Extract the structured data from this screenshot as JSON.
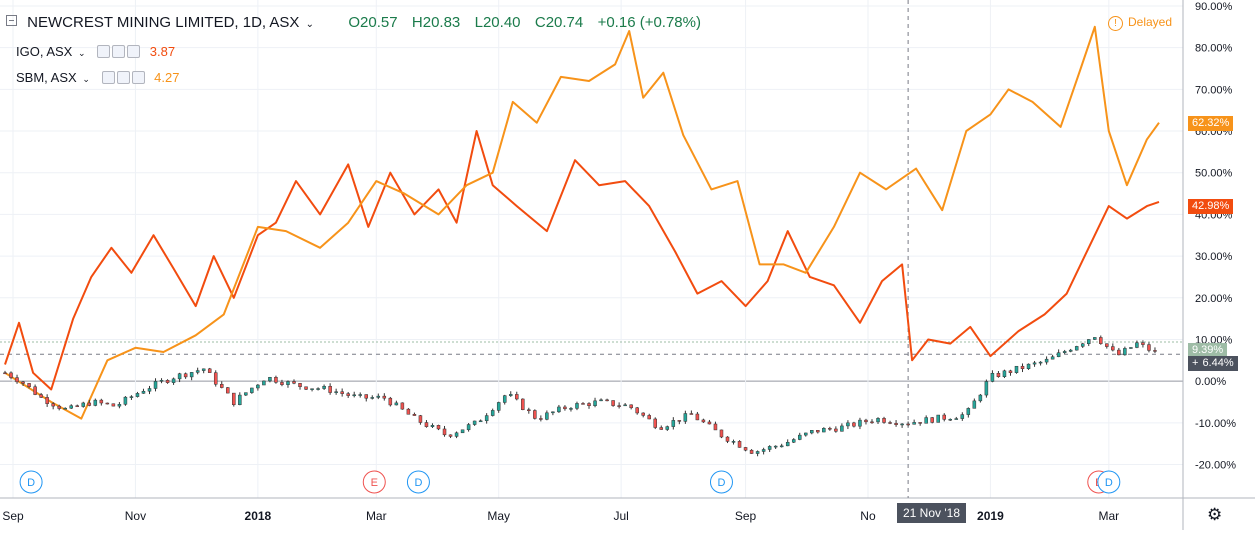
{
  "header": {
    "symbol_title": "NEWCREST MINING LIMITED, 1D, ASX",
    "open": "O20.57",
    "high": "H20.83",
    "low": "L20.40",
    "close": "C20.74",
    "change": "+0.16 (+0.78%)",
    "delayed": "Delayed"
  },
  "legend": [
    {
      "name": "IGO, ASX",
      "value": "3.87",
      "color": "#f24c0f"
    },
    {
      "name": "SBM, ASX",
      "value": "4.27",
      "color": "#f7931a"
    }
  ],
  "crosshair_date": "21 Nov '18",
  "event_markers": [
    "D",
    "E",
    "D",
    "D",
    "E",
    "D"
  ],
  "colors": {
    "igo": "#f24c0f",
    "sbm": "#f7931a",
    "up": "#26a69a",
    "down": "#ef5350",
    "main_badge": "#4c525e",
    "prev_close_badge": "#9ebca6",
    "grid": "#eef1f6"
  },
  "chart_data": {
    "type": "line",
    "y_scale": "percent",
    "ylim": [
      -23,
      90
    ],
    "ytick_labels": [
      "90.00%",
      "80.00%",
      "70.00%",
      "60.00%",
      "50.00%",
      "40.00%",
      "30.00%",
      "20.00%",
      "10.00%",
      "0.00%",
      "-10.00%",
      "-20.00%"
    ],
    "yticks": [
      90,
      80,
      70,
      60,
      50,
      40,
      30,
      20,
      10,
      0,
      -10,
      -20
    ],
    "xtick_labels": [
      "Sep",
      "Nov",
      "2018",
      "Mar",
      "May",
      "Jul",
      "Sep",
      "No",
      "2019",
      "Mar"
    ],
    "xticks": [
      "2017-09-01",
      "2017-11-01",
      "2018-01-01",
      "2018-03-01",
      "2018-05-01",
      "2018-07-01",
      "2018-09-01",
      "2018-11-01",
      "2019-01-01",
      "2019-03-01"
    ],
    "x_range": [
      "2017-08-28",
      "2019-03-28"
    ],
    "last_values": {
      "IGO, ASX": "42.98%",
      "SBM, ASX": "62.32%",
      "NEWCREST MINING LIMITED": "6.44%",
      "previous": "9.39%"
    },
    "series": [
      {
        "name": "IGO, ASX",
        "x": [
          "2017-08-28",
          "2017-09-04",
          "2017-09-11",
          "2017-09-20",
          "2017-10-01",
          "2017-10-10",
          "2017-10-20",
          "2017-10-30",
          "2017-11-10",
          "2017-11-20",
          "2017-12-01",
          "2017-12-10",
          "2017-12-20",
          "2018-01-01",
          "2018-01-10",
          "2018-01-20",
          "2018-02-01",
          "2018-02-15",
          "2018-02-25",
          "2018-03-08",
          "2018-03-20",
          "2018-04-01",
          "2018-04-10",
          "2018-04-20",
          "2018-04-28",
          "2018-05-10",
          "2018-05-25",
          "2018-06-08",
          "2018-06-20",
          "2018-07-03",
          "2018-07-15",
          "2018-07-28",
          "2018-08-08",
          "2018-08-20",
          "2018-09-01",
          "2018-09-12",
          "2018-09-22",
          "2018-10-03",
          "2018-10-15",
          "2018-10-28",
          "2018-11-08",
          "2018-11-18",
          "2018-11-23",
          "2018-12-01",
          "2018-12-12",
          "2018-12-22",
          "2019-01-01",
          "2019-01-15",
          "2019-01-28",
          "2019-02-08",
          "2019-02-18",
          "2019-03-01",
          "2019-03-10",
          "2019-03-20",
          "2019-03-26"
        ],
        "y": [
          4,
          14,
          2,
          -2,
          15,
          25,
          32,
          26,
          35,
          27,
          18,
          30,
          20,
          35,
          38,
          48,
          40,
          52,
          37,
          50,
          40,
          46,
          38,
          60,
          47,
          42,
          36,
          53,
          47,
          48,
          42,
          31,
          21,
          24,
          18,
          24,
          36,
          25,
          23,
          14,
          24,
          28,
          5,
          10,
          9,
          13,
          6,
          12,
          16,
          21,
          31,
          42,
          39,
          42,
          43
        ]
      },
      {
        "name": "SBM, ASX",
        "x": [
          "2017-08-28",
          "2017-09-20",
          "2017-10-05",
          "2017-10-18",
          "2017-11-01",
          "2017-11-15",
          "2017-12-01",
          "2017-12-15",
          "2018-01-01",
          "2018-01-15",
          "2018-02-01",
          "2018-02-15",
          "2018-03-01",
          "2018-03-15",
          "2018-04-01",
          "2018-04-15",
          "2018-04-28",
          "2018-05-08",
          "2018-05-20",
          "2018-06-01",
          "2018-06-15",
          "2018-06-28",
          "2018-07-05",
          "2018-07-12",
          "2018-07-22",
          "2018-08-01",
          "2018-08-15",
          "2018-08-28",
          "2018-09-08",
          "2018-09-20",
          "2018-10-01",
          "2018-10-15",
          "2018-10-28",
          "2018-11-10",
          "2018-11-25",
          "2018-12-08",
          "2018-12-20",
          "2019-01-01",
          "2019-01-10",
          "2019-01-22",
          "2019-02-05",
          "2019-02-15",
          "2019-02-22",
          "2019-03-01",
          "2019-03-10",
          "2019-03-20",
          "2019-03-26"
        ],
        "y": [
          2,
          -5,
          -9,
          5,
          8,
          7,
          11,
          16,
          37,
          36,
          32,
          38,
          48,
          45,
          40,
          47,
          50,
          67,
          62,
          73,
          72,
          76,
          84,
          68,
          74,
          59,
          46,
          48,
          28,
          28,
          26,
          37,
          50,
          46,
          51,
          41,
          60,
          64,
          70,
          67,
          61,
          75,
          85,
          60,
          47,
          58,
          62
        ]
      }
    ],
    "main_series": {
      "name": "NEWCREST MINING LIMITED",
      "type": "candlestick",
      "x": [
        "2017-08-28",
        "2017-09-05",
        "2017-09-15",
        "2017-09-28",
        "2017-10-10",
        "2017-10-22",
        "2017-11-05",
        "2017-11-20",
        "2017-12-05",
        "2017-12-20",
        "2018-01-05",
        "2018-01-20",
        "2018-02-05",
        "2018-02-20",
        "2018-03-05",
        "2018-03-20",
        "2018-04-05",
        "2018-04-20",
        "2018-05-05",
        "2018-05-20",
        "2018-06-05",
        "2018-06-20",
        "2018-07-05",
        "2018-07-20",
        "2018-08-05",
        "2018-08-20",
        "2018-09-05",
        "2018-09-20",
        "2018-10-05",
        "2018-10-20",
        "2018-11-05",
        "2018-11-20",
        "2018-12-05",
        "2018-12-20",
        "2019-01-01",
        "2019-01-15",
        "2019-01-30",
        "2019-02-10",
        "2019-02-22",
        "2019-03-05",
        "2019-03-15",
        "2019-03-26"
      ],
      "y": [
        2,
        0,
        -4,
        -7,
        -5,
        -6,
        -2,
        1,
        3,
        -5,
        1,
        -1,
        -2,
        -4,
        -4,
        -9,
        -13,
        -10,
        -3,
        -9,
        -6,
        -5,
        -6,
        -11,
        -8,
        -13,
        -17,
        -15,
        -12,
        -11,
        -9,
        -10,
        -9,
        -8,
        1,
        3,
        5,
        8,
        11,
        6,
        9,
        6.44
      ]
    }
  }
}
